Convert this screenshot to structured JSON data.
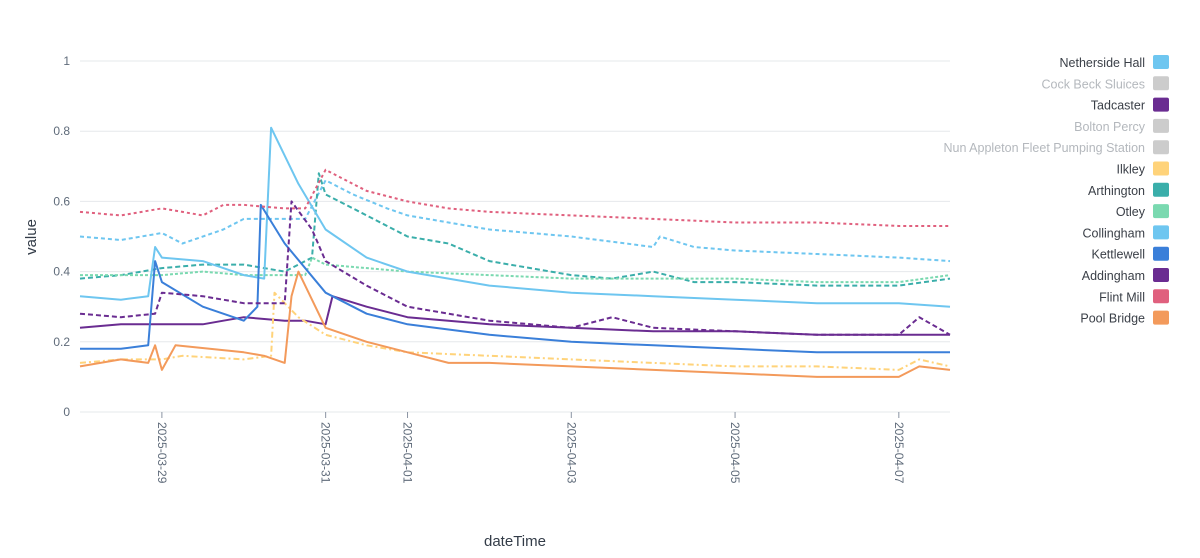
{
  "chart_data": {
    "type": "line",
    "xlabel": "dateTime",
    "ylabel": "value",
    "ylim": [
      0,
      1
    ],
    "yticks": [
      "0",
      "0.2",
      "0.4",
      "0.6",
      "0.8",
      "1"
    ],
    "xlim": [
      "2025-03-28",
      "2025-04-07 15:00"
    ],
    "xticks": [
      "2025-03-29",
      "2025-03-31",
      "2025-04-01",
      "2025-04-03",
      "2025-04-05",
      "2025-04-07"
    ],
    "grid": "horizontal",
    "legend_position": "right",
    "series": [
      {
        "name": "Netherside Hall",
        "color": "#6ec6f0",
        "visible": true,
        "dash": "4 3",
        "points": [
          [
            "2025-03-28",
            0.5
          ],
          [
            "2025-03-28 12:00",
            0.49
          ],
          [
            "2025-03-29",
            0.51
          ],
          [
            "2025-03-29 06:00",
            0.48
          ],
          [
            "2025-03-29 18:00",
            0.52
          ],
          [
            "2025-03-30",
            0.55
          ],
          [
            "2025-03-30 12:00",
            0.55
          ],
          [
            "2025-03-30 18:00",
            0.55
          ],
          [
            "2025-03-31",
            0.66
          ],
          [
            "2025-03-31 08:00",
            0.62
          ],
          [
            "2025-03-31 18:00",
            0.58
          ],
          [
            "2025-04-01",
            0.56
          ],
          [
            "2025-04-01 12:00",
            0.54
          ],
          [
            "2025-04-02",
            0.52
          ],
          [
            "2025-04-03",
            0.5
          ],
          [
            "2025-04-04",
            0.47
          ],
          [
            "2025-04-04 02:00",
            0.5
          ],
          [
            "2025-04-04 12:00",
            0.47
          ],
          [
            "2025-04-05",
            0.46
          ],
          [
            "2025-04-06",
            0.45
          ],
          [
            "2025-04-07",
            0.44
          ],
          [
            "2025-04-07 15:00",
            0.43
          ]
        ]
      },
      {
        "name": "Cock Beck Sluices",
        "color": "#cccccc",
        "visible": false,
        "dash": "",
        "points": []
      },
      {
        "name": "Tadcaster",
        "color": "#6a2c91",
        "visible": true,
        "dash": "",
        "points": [
          [
            "2025-03-28",
            0.24
          ],
          [
            "2025-03-28 12:00",
            0.25
          ],
          [
            "2025-03-29",
            0.25
          ],
          [
            "2025-03-29 12:00",
            0.25
          ],
          [
            "2025-03-29 18:00",
            0.26
          ],
          [
            "2025-03-30",
            0.27
          ],
          [
            "2025-03-30 12:00",
            0.26
          ],
          [
            "2025-03-30 18:00",
            0.26
          ],
          [
            "2025-03-31",
            0.25
          ],
          [
            "2025-03-31 02:00",
            0.33
          ],
          [
            "2025-03-31 12:00",
            0.3
          ],
          [
            "2025-04-01",
            0.27
          ],
          [
            "2025-04-02",
            0.25
          ],
          [
            "2025-04-03",
            0.24
          ],
          [
            "2025-04-04",
            0.23
          ],
          [
            "2025-04-05",
            0.23
          ],
          [
            "2025-04-06",
            0.22
          ],
          [
            "2025-04-07",
            0.22
          ],
          [
            "2025-04-07 15:00",
            0.22
          ]
        ]
      },
      {
        "name": "Bolton Percy",
        "color": "#cccccc",
        "visible": false,
        "dash": "",
        "points": []
      },
      {
        "name": "Nun Appleton Fleet Pumping Station",
        "color": "#cccccc",
        "visible": false,
        "dash": "",
        "points": []
      },
      {
        "name": "Ilkley",
        "color": "#ffd37a",
        "visible": true,
        "dash": "6 3 2 3",
        "points": [
          [
            "2025-03-28",
            0.14
          ],
          [
            "2025-03-28 12:00",
            0.15
          ],
          [
            "2025-03-29",
            0.15
          ],
          [
            "2025-03-29 06:00",
            0.16
          ],
          [
            "2025-03-30",
            0.15
          ],
          [
            "2025-03-30 08:00",
            0.16
          ],
          [
            "2025-03-30 09:00",
            0.34
          ],
          [
            "2025-03-30 16:00",
            0.27
          ],
          [
            "2025-03-31",
            0.22
          ],
          [
            "2025-03-31 12:00",
            0.19
          ],
          [
            "2025-04-01",
            0.17
          ],
          [
            "2025-04-02",
            0.16
          ],
          [
            "2025-04-03",
            0.15
          ],
          [
            "2025-04-04",
            0.14
          ],
          [
            "2025-04-05",
            0.13
          ],
          [
            "2025-04-06",
            0.13
          ],
          [
            "2025-04-07",
            0.12
          ],
          [
            "2025-04-07 06:00",
            0.15
          ],
          [
            "2025-04-07 15:00",
            0.13
          ]
        ]
      },
      {
        "name": "Arthington",
        "color": "#3aaeaa",
        "visible": true,
        "dash": "5 3",
        "points": [
          [
            "2025-03-28",
            0.38
          ],
          [
            "2025-03-28 12:00",
            0.39
          ],
          [
            "2025-03-29",
            0.41
          ],
          [
            "2025-03-29 12:00",
            0.42
          ],
          [
            "2025-03-30",
            0.42
          ],
          [
            "2025-03-30 12:00",
            0.4
          ],
          [
            "2025-03-30 20:00",
            0.44
          ],
          [
            "2025-03-30 22:00",
            0.68
          ],
          [
            "2025-03-31",
            0.62
          ],
          [
            "2025-03-31 12:00",
            0.56
          ],
          [
            "2025-04-01",
            0.5
          ],
          [
            "2025-04-01 12:00",
            0.48
          ],
          [
            "2025-04-02",
            0.43
          ],
          [
            "2025-04-03",
            0.39
          ],
          [
            "2025-04-03 12:00",
            0.38
          ],
          [
            "2025-04-04",
            0.4
          ],
          [
            "2025-04-04 12:00",
            0.37
          ],
          [
            "2025-04-05",
            0.37
          ],
          [
            "2025-04-06",
            0.36
          ],
          [
            "2025-04-07",
            0.36
          ],
          [
            "2025-04-07 15:00",
            0.38
          ]
        ]
      },
      {
        "name": "Otley",
        "color": "#7ad9b0",
        "visible": true,
        "dash": "3 2",
        "points": [
          [
            "2025-03-28",
            0.39
          ],
          [
            "2025-03-29",
            0.39
          ],
          [
            "2025-03-29 12:00",
            0.4
          ],
          [
            "2025-03-30",
            0.39
          ],
          [
            "2025-03-30 12:00",
            0.39
          ],
          [
            "2025-03-30 18:00",
            0.39
          ],
          [
            "2025-03-30 20:00",
            0.44
          ],
          [
            "2025-03-31",
            0.42
          ],
          [
            "2025-04-01",
            0.4
          ],
          [
            "2025-04-02",
            0.39
          ],
          [
            "2025-04-03",
            0.38
          ],
          [
            "2025-04-04",
            0.38
          ],
          [
            "2025-04-05",
            0.38
          ],
          [
            "2025-04-06",
            0.37
          ],
          [
            "2025-04-07",
            0.37
          ],
          [
            "2025-04-07 15:00",
            0.39
          ]
        ]
      },
      {
        "name": "Collingham",
        "color": "#6ec6f0",
        "visible": true,
        "dash": "",
        "points": [
          [
            "2025-03-28",
            0.33
          ],
          [
            "2025-03-28 12:00",
            0.32
          ],
          [
            "2025-03-28 20:00",
            0.33
          ],
          [
            "2025-03-28 22:00",
            0.47
          ],
          [
            "2025-03-29",
            0.44
          ],
          [
            "2025-03-29 12:00",
            0.43
          ],
          [
            "2025-03-30",
            0.39
          ],
          [
            "2025-03-30 06:00",
            0.38
          ],
          [
            "2025-03-30 08:00",
            0.81
          ],
          [
            "2025-03-30 16:00",
            0.65
          ],
          [
            "2025-03-31",
            0.52
          ],
          [
            "2025-03-31 12:00",
            0.44
          ],
          [
            "2025-04-01",
            0.4
          ],
          [
            "2025-04-02",
            0.36
          ],
          [
            "2025-04-03",
            0.34
          ],
          [
            "2025-04-04",
            0.33
          ],
          [
            "2025-04-05",
            0.32
          ],
          [
            "2025-04-06",
            0.31
          ],
          [
            "2025-04-07",
            0.31
          ],
          [
            "2025-04-07 15:00",
            0.3
          ]
        ]
      },
      {
        "name": "Kettlewell",
        "color": "#3a7fd9",
        "visible": true,
        "dash": "",
        "points": [
          [
            "2025-03-28",
            0.18
          ],
          [
            "2025-03-28 12:00",
            0.18
          ],
          [
            "2025-03-28 20:00",
            0.19
          ],
          [
            "2025-03-28 22:00",
            0.43
          ],
          [
            "2025-03-29",
            0.37
          ],
          [
            "2025-03-29 12:00",
            0.3
          ],
          [
            "2025-03-30",
            0.26
          ],
          [
            "2025-03-30 04:00",
            0.3
          ],
          [
            "2025-03-30 05:00",
            0.59
          ],
          [
            "2025-03-30 12:00",
            0.48
          ],
          [
            "2025-03-31",
            0.34
          ],
          [
            "2025-03-31 12:00",
            0.28
          ],
          [
            "2025-04-01",
            0.25
          ],
          [
            "2025-04-02",
            0.22
          ],
          [
            "2025-04-03",
            0.2
          ],
          [
            "2025-04-04",
            0.19
          ],
          [
            "2025-04-05",
            0.18
          ],
          [
            "2025-04-06",
            0.17
          ],
          [
            "2025-04-07",
            0.17
          ],
          [
            "2025-04-07 15:00",
            0.17
          ]
        ]
      },
      {
        "name": "Addingham",
        "color": "#6a2c91",
        "visible": true,
        "dash": "5 3",
        "points": [
          [
            "2025-03-28",
            0.28
          ],
          [
            "2025-03-28 12:00",
            0.27
          ],
          [
            "2025-03-28 22:00",
            0.28
          ],
          [
            "2025-03-29",
            0.34
          ],
          [
            "2025-03-29 12:00",
            0.33
          ],
          [
            "2025-03-30",
            0.31
          ],
          [
            "2025-03-30 12:00",
            0.31
          ],
          [
            "2025-03-30 14:00",
            0.6
          ],
          [
            "2025-03-30 20:00",
            0.52
          ],
          [
            "2025-03-31",
            0.43
          ],
          [
            "2025-03-31 12:00",
            0.36
          ],
          [
            "2025-04-01",
            0.3
          ],
          [
            "2025-04-02",
            0.26
          ],
          [
            "2025-04-03",
            0.24
          ],
          [
            "2025-04-03 12:00",
            0.27
          ],
          [
            "2025-04-04",
            0.24
          ],
          [
            "2025-04-05",
            0.23
          ],
          [
            "2025-04-06",
            0.22
          ],
          [
            "2025-04-07",
            0.22
          ],
          [
            "2025-04-07 06:00",
            0.27
          ],
          [
            "2025-04-07 15:00",
            0.22
          ]
        ]
      },
      {
        "name": "Flint Mill",
        "color": "#e0607e",
        "visible": true,
        "dash": "3 3",
        "points": [
          [
            "2025-03-28",
            0.57
          ],
          [
            "2025-03-28 12:00",
            0.56
          ],
          [
            "2025-03-29",
            0.58
          ],
          [
            "2025-03-29 12:00",
            0.56
          ],
          [
            "2025-03-29 18:00",
            0.59
          ],
          [
            "2025-03-30",
            0.59
          ],
          [
            "2025-03-30 12:00",
            0.58
          ],
          [
            "2025-03-30 18:00",
            0.58
          ],
          [
            "2025-03-31",
            0.69
          ],
          [
            "2025-03-31 12:00",
            0.63
          ],
          [
            "2025-04-01",
            0.6
          ],
          [
            "2025-04-01 12:00",
            0.58
          ],
          [
            "2025-04-02",
            0.57
          ],
          [
            "2025-04-03",
            0.56
          ],
          [
            "2025-04-04",
            0.55
          ],
          [
            "2025-04-05",
            0.54
          ],
          [
            "2025-04-06",
            0.54
          ],
          [
            "2025-04-07",
            0.53
          ],
          [
            "2025-04-07 15:00",
            0.53
          ]
        ]
      },
      {
        "name": "Pool Bridge",
        "color": "#f39a5b",
        "visible": true,
        "dash": "",
        "points": [
          [
            "2025-03-28",
            0.13
          ],
          [
            "2025-03-28 12:00",
            0.15
          ],
          [
            "2025-03-28 20:00",
            0.14
          ],
          [
            "2025-03-28 22:00",
            0.19
          ],
          [
            "2025-03-29",
            0.12
          ],
          [
            "2025-03-29 04:00",
            0.19
          ],
          [
            "2025-03-30",
            0.17
          ],
          [
            "2025-03-30 06:00",
            0.16
          ],
          [
            "2025-03-30 12:00",
            0.14
          ],
          [
            "2025-03-30 14:00",
            0.33
          ],
          [
            "2025-03-30 16:00",
            0.4
          ],
          [
            "2025-03-31",
            0.24
          ],
          [
            "2025-03-31 12:00",
            0.2
          ],
          [
            "2025-04-01",
            0.17
          ],
          [
            "2025-04-01 12:00",
            0.14
          ],
          [
            "2025-04-02",
            0.14
          ],
          [
            "2025-04-03",
            0.13
          ],
          [
            "2025-04-04",
            0.12
          ],
          [
            "2025-04-05",
            0.11
          ],
          [
            "2025-04-06",
            0.1
          ],
          [
            "2025-04-07",
            0.1
          ],
          [
            "2025-04-07 06:00",
            0.13
          ],
          [
            "2025-04-07 15:00",
            0.12
          ]
        ]
      }
    ]
  }
}
